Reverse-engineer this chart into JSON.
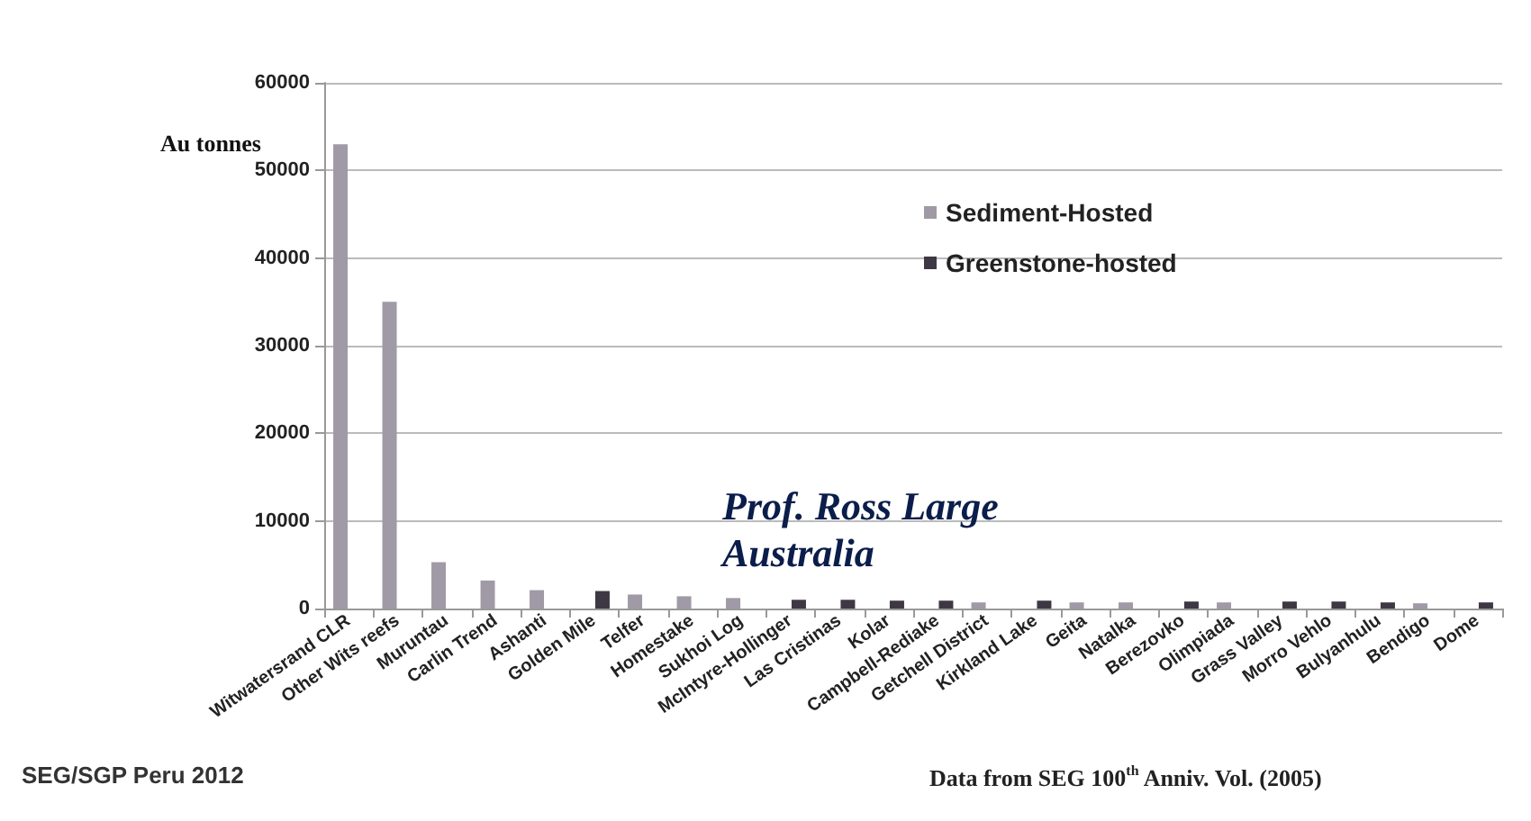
{
  "chart_data": {
    "type": "bar",
    "ylabel": "Au tonnes",
    "categories": [
      "Witwatersrand CLR",
      "Other Wits reefs",
      "Muruntau",
      "Carlin Trend",
      "Ashanti",
      "Golden Mile",
      "Telfer",
      "Homestake",
      "Sukhoi Log",
      "McIntyre-Hollinger",
      "Las Cristinas",
      "Kolar",
      "Campbell-Rediake",
      "Getchell District",
      "Kirkland Lake",
      "Geita",
      "Natalka",
      "Berezovko",
      "Olimpiada",
      "Grass Valley",
      "Morro Vehlo",
      "Bulyanhulu",
      "Bendigo",
      "Dome"
    ],
    "series": [
      {
        "name": "Sediment-Hosted",
        "color": "#a09aa6",
        "values": [
          53000,
          35000,
          5300,
          3200,
          2100,
          null,
          1600,
          1400,
          1200,
          null,
          null,
          null,
          null,
          700,
          null,
          700,
          700,
          null,
          700,
          null,
          null,
          null,
          600,
          null
        ]
      },
      {
        "name": "Greenstone-hosted",
        "color": "#3e3844",
        "values": [
          null,
          null,
          null,
          null,
          null,
          2000,
          null,
          null,
          null,
          1000,
          1000,
          900,
          900,
          null,
          900,
          null,
          null,
          800,
          null,
          800,
          800,
          700,
          null,
          700
        ]
      }
    ],
    "ylim": [
      0,
      60000
    ],
    "yticks": [
      0,
      10000,
      20000,
      30000,
      40000,
      50000,
      60000
    ],
    "grid": "y",
    "legend": "top right",
    "annotations": [
      "Prof. Ross Large",
      "Australia",
      "SEG/SGP Peru 2012",
      "Data from SEG 100$^{th}$ Anniv. Vol. (2005)"
    ]
  }
}
